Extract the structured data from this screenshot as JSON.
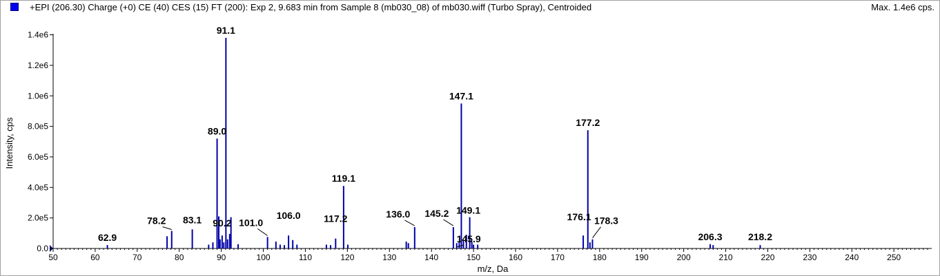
{
  "title": "+EPI (206.30) Charge (+0) CE (40) CES (15) FT (200): Exp 2, 9.683 min from Sample 8 (mb030_08) of mb030.wiff (Turbo Spray), Centroided",
  "max_label": "Max. 1.4e6 cps.",
  "colors": {
    "series": "#0000a8",
    "swatch": "#0000ee"
  },
  "chart_data": {
    "type": "bar",
    "title": "+EPI (206.30) Charge (+0) CE (40) CES (15) FT (200): Exp 2, 9.683 min from Sample 8 (mb030_08) of mb030.wiff (Turbo Spray), Centroided",
    "xlabel": "m/z, Da",
    "ylabel": "Intensity, cps",
    "xlim": [
      50,
      259
    ],
    "ylim": [
      0,
      1380000.0
    ],
    "x_ticks": [
      50,
      60,
      70,
      80,
      90,
      100,
      110,
      120,
      130,
      140,
      150,
      160,
      170,
      180,
      190,
      200,
      210,
      220,
      230,
      240,
      250
    ],
    "x_tick_labels": [
      "50",
      "60",
      "70",
      "80",
      "90",
      "100",
      "110",
      "120",
      "130",
      "140",
      "150",
      "160",
      "170",
      "180",
      "190",
      "200",
      "210",
      "220",
      "230",
      "240",
      "250"
    ],
    "y_ticks": [
      0,
      200000,
      400000,
      600000,
      800000,
      1000000,
      1200000,
      1400000
    ],
    "y_tick_labels": [
      "0.0",
      "2.0e5",
      "4.0e5",
      "6.0e5",
      "8.0e5",
      "1.0e6",
      "1.2e6",
      "1.4e6"
    ],
    "grid": false,
    "legend": "top-left",
    "peaks": [
      [
        62.9,
        22000
      ],
      [
        77.1,
        80000
      ],
      [
        78.2,
        115000
      ],
      [
        83.1,
        125000
      ],
      [
        87.0,
        25000
      ],
      [
        88.0,
        40000
      ],
      [
        89.0,
        720000
      ],
      [
        89.4,
        210000
      ],
      [
        89.7,
        60000
      ],
      [
        90.2,
        85000
      ],
      [
        90.6,
        40000
      ],
      [
        91.1,
        1380000
      ],
      [
        91.5,
        60000
      ],
      [
        92.0,
        95000
      ],
      [
        92.3,
        205000
      ],
      [
        94.0,
        28000
      ],
      [
        101.0,
        75000
      ],
      [
        103.0,
        45000
      ],
      [
        104.0,
        25000
      ],
      [
        105.0,
        22000
      ],
      [
        106.0,
        85000
      ],
      [
        107.0,
        55000
      ],
      [
        108.0,
        25000
      ],
      [
        115.0,
        25000
      ],
      [
        116.0,
        22000
      ],
      [
        117.2,
        65000
      ],
      [
        119.1,
        410000
      ],
      [
        120.1,
        25000
      ],
      [
        134.0,
        45000
      ],
      [
        134.5,
        35000
      ],
      [
        136.0,
        140000
      ],
      [
        145.2,
        140000
      ],
      [
        146.0,
        35000
      ],
      [
        146.6,
        45000
      ],
      [
        147.1,
        950000
      ],
      [
        147.6,
        55000
      ],
      [
        148.3,
        90000
      ],
      [
        149.1,
        205000
      ],
      [
        149.6,
        45000
      ],
      [
        150.0,
        25000
      ],
      [
        151.0,
        25000
      ],
      [
        176.1,
        85000
      ],
      [
        177.2,
        775000
      ],
      [
        177.7,
        40000
      ],
      [
        178.3,
        60000
      ],
      [
        206.3,
        28000
      ],
      [
        207.0,
        22000
      ],
      [
        218.2,
        22000
      ]
    ],
    "labels": [
      {
        "text": "62.9",
        "mz": 62.9
      },
      {
        "text": "78.2",
        "mz": 78.2
      },
      {
        "text": "83.1",
        "mz": 83.1
      },
      {
        "text": "89.0",
        "mz": 89.0
      },
      {
        "text": "90.2",
        "mz": 90.2
      },
      {
        "text": "91.1",
        "mz": 91.1
      },
      {
        "text": "101.0",
        "mz": 101.0
      },
      {
        "text": "106.0",
        "mz": 106.0
      },
      {
        "text": "117.2",
        "mz": 117.2
      },
      {
        "text": "119.1",
        "mz": 119.1
      },
      {
        "text": "136.0",
        "mz": 136.0
      },
      {
        "text": "145.2",
        "mz": 145.2
      },
      {
        "text": "147.1",
        "mz": 147.1
      },
      {
        "text": "149.1",
        "mz": 149.1
      },
      {
        "text": "145.9",
        "mz": 145.9
      },
      {
        "text": "176.1",
        "mz": 176.1
      },
      {
        "text": "177.2",
        "mz": 177.2
      },
      {
        "text": "178.3",
        "mz": 178.3
      },
      {
        "text": "206.3",
        "mz": 206.3
      },
      {
        "text": "218.2",
        "mz": 218.2
      }
    ]
  }
}
